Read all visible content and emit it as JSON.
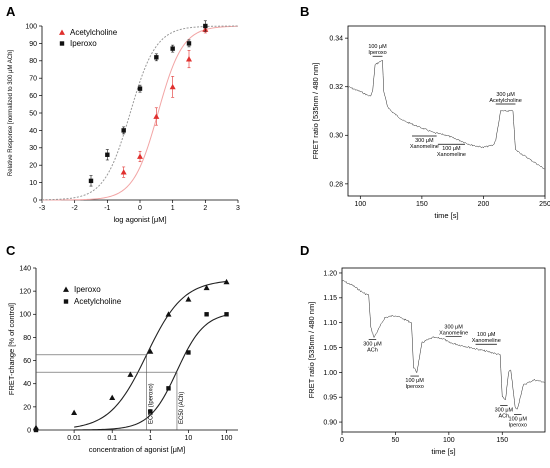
{
  "colors": {
    "iperoxo": "#111111",
    "acetylcholine": "#e0302e",
    "ach_fit": "#f2a5a5",
    "iper_fit": "#999999",
    "trace": "#222222"
  },
  "chart_data": [
    {
      "panel": "A",
      "type": "scatter",
      "xlabel": "log agonist [μM]",
      "ylabel": "Relative Response [normalized to 300 μM ACh]",
      "xlim": [
        -3,
        3
      ],
      "ylim": [
        0,
        100
      ],
      "xticks": [
        "-3",
        "-2",
        "-1",
        "0",
        "1",
        "2",
        "3"
      ],
      "yticks": [
        "0",
        "10",
        "20",
        "30",
        "40",
        "50",
        "60",
        "70",
        "80",
        "90",
        "100"
      ],
      "legend_position": "top-left",
      "series": [
        {
          "name": "Acetylcholine",
          "marker": "triangle",
          "color": "#e0302e",
          "x": [
            -0.5,
            0,
            0.5,
            1,
            1.5,
            2
          ],
          "y": [
            16,
            25,
            48,
            65,
            81,
            98
          ],
          "err": [
            3,
            3,
            5,
            6,
            5,
            2
          ],
          "fit_ec50_log": 0.55,
          "fit_hill": 1.15
        },
        {
          "name": "Iperoxo",
          "marker": "square",
          "color": "#111111",
          "x": [
            -1.5,
            -1,
            -0.5,
            0,
            0.5,
            1,
            1.5,
            2
          ],
          "y": [
            11,
            26,
            40,
            64,
            82,
            87,
            90,
            100
          ],
          "err": [
            3,
            3,
            2,
            2,
            2,
            2,
            2,
            3
          ],
          "fit_ec50_log": -0.3,
          "fit_hill": 1.1
        }
      ]
    },
    {
      "panel": "B",
      "type": "line",
      "xlabel": "time [s]",
      "ylabel": "FRET ratio [535nm / 480 nm]",
      "xlim": [
        90,
        250
      ],
      "ylim": [
        0.275,
        0.345
      ],
      "xticks": [
        "100",
        "150",
        "200",
        "250"
      ],
      "yticks": [
        "0.28",
        "0.30",
        "0.32",
        "0.34"
      ],
      "trace": {
        "x": [
          90,
          100,
          108,
          110,
          112,
          118,
          119,
          122,
          125,
          135,
          140,
          150,
          160,
          170,
          180,
          190,
          200,
          208,
          210,
          214,
          224,
          226,
          235,
          250
        ],
        "y": [
          0.32,
          0.318,
          0.316,
          0.318,
          0.329,
          0.331,
          0.318,
          0.312,
          0.31,
          0.306,
          0.305,
          0.303,
          0.301,
          0.3,
          0.298,
          0.296,
          0.295,
          0.296,
          0.298,
          0.31,
          0.31,
          0.294,
          0.291,
          0.286
        ]
      },
      "annotations": [
        {
          "text": [
            "100 μM",
            "Iperoxo"
          ],
          "x1": 110,
          "x2": 118
        },
        {
          "text": [
            "300 μM",
            "Xanomeline"
          ],
          "x1": 142,
          "x2": 162
        },
        {
          "text": [
            "100 μM",
            "Xanomeline"
          ],
          "x1": 163,
          "x2": 185
        },
        {
          "text": [
            "300 μM",
            "Acetylcholine"
          ],
          "x1": 210,
          "x2": 226
        }
      ]
    },
    {
      "panel": "C",
      "type": "scatter",
      "xlabel": "concentration of agonist [μM]",
      "ylabel": "FRET-change [% of control]",
      "x_scale": "log",
      "xlim": [
        0.001,
        200
      ],
      "ylim": [
        0,
        140
      ],
      "xticks": [
        "0.01",
        "0.1",
        "1",
        "10",
        "100"
      ],
      "yticks": [
        "0",
        "20",
        "40",
        "60",
        "80",
        "100",
        "120",
        "140"
      ],
      "legend_position": "top-left",
      "ec50_labels": [
        "EC50 (Iperoxo)",
        "EC50 (ACh)"
      ],
      "series": [
        {
          "name": "Iperoxo",
          "marker": "triangle",
          "color": "#111111",
          "x": [
            0.001,
            0.01,
            0.1,
            0.3,
            1,
            3,
            10,
            30,
            100
          ],
          "y": [
            2,
            15,
            28,
            48,
            68,
            100,
            113,
            123,
            128
          ]
        },
        {
          "name": "Acetylcholine",
          "marker": "square",
          "color": "#111111",
          "x": [
            0.001,
            1,
            3,
            10,
            30,
            100
          ],
          "y": [
            0,
            16,
            36,
            67,
            100,
            100
          ]
        }
      ]
    },
    {
      "panel": "D",
      "type": "line",
      "xlabel": "time [s]",
      "ylabel": "FRET ratio [535nm / 480 nm]",
      "xlim": [
        0,
        190
      ],
      "ylim": [
        0.88,
        1.21
      ],
      "xticks": [
        "0",
        "50",
        "100",
        "150"
      ],
      "yticks": [
        "0.90",
        "0.95",
        "1.00",
        "1.05",
        "1.10",
        "1.15",
        "1.20"
      ],
      "trace": {
        "x": [
          0,
          10,
          20,
          25,
          27,
          30,
          40,
          50,
          60,
          65,
          67,
          70,
          75,
          85,
          95,
          100,
          110,
          120,
          130,
          140,
          148,
          150,
          153,
          156,
          158,
          162,
          164,
          168,
          170,
          180,
          190
        ],
        "y": [
          1.185,
          1.175,
          1.16,
          1.155,
          1.09,
          1.07,
          1.11,
          1.115,
          1.105,
          1.1,
          1.01,
          1.0,
          1.06,
          1.07,
          1.068,
          1.06,
          1.055,
          1.05,
          1.045,
          1.04,
          1.035,
          0.95,
          0.945,
          1.0,
          1.005,
          0.93,
          0.925,
          0.96,
          0.975,
          0.985,
          0.98
        ]
      },
      "annotations": [
        {
          "text": [
            "300 μM",
            "ACh"
          ],
          "x1": 25,
          "x2": 32,
          "below": true
        },
        {
          "text": [
            "100 μM",
            "Iperoxo"
          ],
          "x1": 64,
          "x2": 72,
          "below": true
        },
        {
          "text": [
            "300 μM",
            "Xanomeline"
          ],
          "x1": 97,
          "x2": 112,
          "below": false
        },
        {
          "text": [
            "100 μM",
            "Xanomeline"
          ],
          "x1": 125,
          "x2": 145,
          "below": false
        },
        {
          "text": [
            "300 μM",
            "ACh"
          ],
          "x1": 148,
          "x2": 155,
          "below": true
        },
        {
          "text": [
            "100 μM",
            "Iperoxo"
          ],
          "x1": 161,
          "x2": 168,
          "below": true
        }
      ]
    }
  ]
}
